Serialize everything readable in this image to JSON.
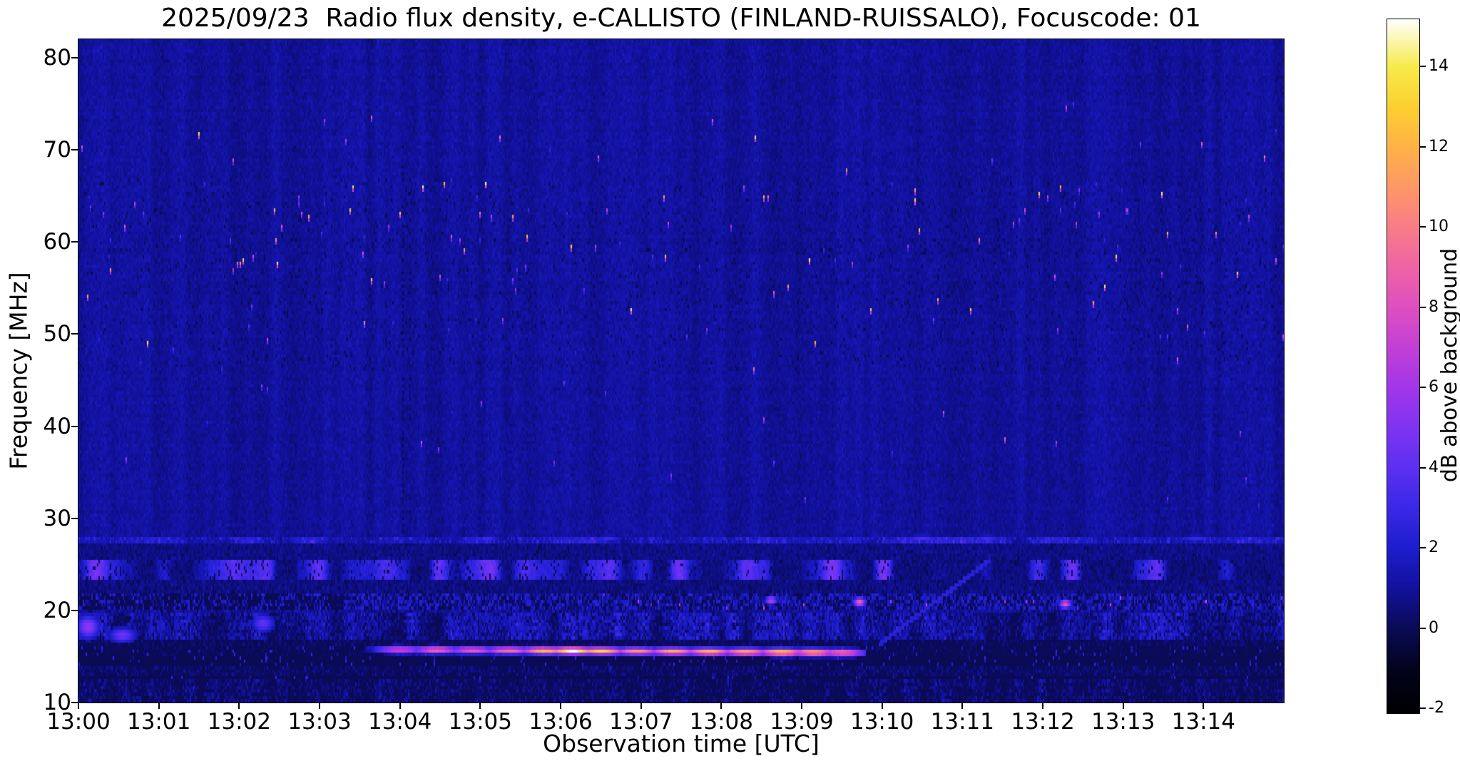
{
  "chart_data": {
    "type": "heatmap",
    "title": "2025/09/23  Radio flux density, e-CALLISTO (FINLAND-RUISSALO), Focuscode: 01",
    "xlabel": "Observation time [UTC]",
    "ylabel": "Frequency [MHz]",
    "x_ticks": [
      "13:00",
      "13:01",
      "13:02",
      "13:03",
      "13:04",
      "13:05",
      "13:06",
      "13:07",
      "13:08",
      "13:09",
      "13:10",
      "13:11",
      "13:12",
      "13:13",
      "13:14"
    ],
    "x_range_minutes": [
      0,
      15
    ],
    "y_ticks": [
      10,
      20,
      30,
      40,
      50,
      60,
      70,
      80
    ],
    "y_range_mhz": [
      10,
      82
    ],
    "grid": false,
    "background_db": 1.0,
    "seed": 20250923,
    "colorbar": {
      "label": "dB above background",
      "ticks": [
        -2,
        0,
        2,
        4,
        6,
        8,
        10,
        12,
        14
      ],
      "range_db": [
        -2.1,
        15.2
      ],
      "colormap": "gnuplot2-like",
      "stops": [
        [
          0.0,
          "#000000"
        ],
        [
          0.0636,
          "#03031c"
        ],
        [
          0.1214,
          "#0a0a55"
        ],
        [
          0.1792,
          "#11119c"
        ],
        [
          0.237,
          "#1d1dce"
        ],
        [
          0.2948,
          "#3928e6"
        ],
        [
          0.3526,
          "#5c2ff2"
        ],
        [
          0.4104,
          "#7e33f2"
        ],
        [
          0.4682,
          "#a136e8"
        ],
        [
          0.526,
          "#c23fd6"
        ],
        [
          0.5838,
          "#dd4fc0"
        ],
        [
          0.6416,
          "#ee63a5"
        ],
        [
          0.6994,
          "#f87c87"
        ],
        [
          0.7572,
          "#fe9766"
        ],
        [
          0.815,
          "#ffb246"
        ],
        [
          0.8728,
          "#fccf30"
        ],
        [
          0.9306,
          "#f7ea49"
        ],
        [
          1.0,
          "#ffffff"
        ]
      ]
    },
    "features": [
      {
        "kind": "dark_specks",
        "f": [
          46,
          67
        ],
        "density": 0.03,
        "depth": 1.25
      },
      {
        "kind": "speckles",
        "f": [
          30,
          47
        ],
        "density": 0.0005,
        "amp": [
          2.5,
          10
        ]
      },
      {
        "kind": "speckles",
        "f": [
          47,
          58.5
        ],
        "density": 0.0028,
        "amp": [
          2.5,
          15
        ]
      },
      {
        "kind": "speckles",
        "f": [
          58.5,
          67
        ],
        "density": 0.0042,
        "amp": [
          2.5,
          15
        ]
      },
      {
        "kind": "speckles",
        "f": [
          67,
          71
        ],
        "density": 0.0012,
        "amp": [
          2.5,
          12
        ]
      },
      {
        "kind": "speckles",
        "f": [
          71,
          76
        ],
        "density": 0.0007,
        "amp": [
          3,
          14
        ]
      },
      {
        "kind": "hline_dashes",
        "f": [
          27.45,
          28.15
        ],
        "base": 1.3,
        "dash_p": 0.3,
        "dash_amp": 1.5,
        "scale": 20,
        "blob_amp": 1.6
      },
      {
        "kind": "noise_band",
        "f": [
          25.4,
          27.45
        ],
        "base": 0.7,
        "noise": 0.55,
        "dark_p": 0.05
      },
      {
        "kind": "blob_band",
        "f": [
          23.3,
          25.4
        ],
        "base": 0.55,
        "amp": 3.4,
        "scale": 12,
        "dark_p": 0.1
      },
      {
        "kind": "noise_band",
        "f": [
          21.85,
          23.3
        ],
        "base": 0.65,
        "noise": 0.6,
        "dark_p": 0.08
      },
      {
        "kind": "ragged_band",
        "f": [
          20.2,
          21.85
        ],
        "t_split": 3.3,
        "black_p_left": 0.65,
        "black_p_right": 0.34,
        "bright_p": 0.004,
        "bright_amp": [
          4,
          8.5
        ],
        "bright_t_min": 4.5
      },
      {
        "kind": "noise_band",
        "f": [
          19.6,
          20.2
        ],
        "base": 1.0,
        "noise": 0.8,
        "dark_p": 0.06
      },
      {
        "kind": "noise_band",
        "f": [
          16.8,
          19.6
        ],
        "base": 0.9,
        "noise": 1.1,
        "scale": 9,
        "blob_amp": 2.2,
        "dark_p": 0.15
      },
      {
        "kind": "noise_band",
        "f": [
          16.05,
          16.8
        ],
        "base": 0.15,
        "noise": 0.8,
        "dark_p": 0.25
      },
      {
        "kind": "noise_band",
        "f": [
          15.05,
          16.05
        ],
        "base": -0.1,
        "noise": 0.8,
        "dark_p": 0.3,
        "blue_p": 0.04
      },
      {
        "kind": "black_band",
        "f": [
          13.95,
          15.05
        ],
        "base": -1.5,
        "noise": 1.1,
        "blue_p": 0.045
      },
      {
        "kind": "noise_band",
        "f": [
          13.2,
          13.95
        ],
        "base": 0.3,
        "noise": 0.9,
        "dark_p": 0.22
      },
      {
        "kind": "black_band",
        "f": [
          12.35,
          12.8
        ],
        "base": -1.1,
        "noise": 0.9,
        "blue_p": 0.03
      },
      {
        "kind": "noise_band",
        "f": [
          12.8,
          13.2
        ],
        "base": 0.25,
        "noise": 0.9,
        "dark_p": 0.2
      },
      {
        "kind": "noise_band",
        "f": [
          10,
          12.35
        ],
        "base": 0.25,
        "noise": 1.0,
        "scale": 5,
        "blob_amp": 1.1,
        "dark_p": 0.28
      },
      {
        "kind": "burst",
        "t": [
          3.55,
          9.8
        ],
        "f0": 15.95,
        "drift": -0.055,
        "halfwidth": 0.4,
        "sigma": 0.22,
        "peaks": [
          [
            4.0,
            8
          ],
          [
            4.45,
            9.5
          ],
          [
            4.9,
            9
          ],
          [
            5.35,
            10
          ],
          [
            5.8,
            12.5
          ],
          [
            6.15,
            15.2
          ],
          [
            6.5,
            13.5
          ],
          [
            6.95,
            11
          ],
          [
            7.4,
            12
          ],
          [
            7.85,
            12.5
          ],
          [
            8.3,
            12
          ],
          [
            8.75,
            13
          ],
          [
            9.15,
            12
          ],
          [
            9.5,
            10
          ]
        ]
      },
      {
        "kind": "bright_spot",
        "t": 0.12,
        "f": 18.2,
        "amp": 5.5,
        "st": 0.1,
        "sf": 0.9
      },
      {
        "kind": "bright_spot",
        "t": 0.55,
        "f": 17.3,
        "amp": 4.5,
        "st": 0.12,
        "sf": 0.6
      },
      {
        "kind": "bright_spot",
        "t": 2.3,
        "f": 18.6,
        "amp": 4.2,
        "st": 0.1,
        "sf": 0.7
      },
      {
        "kind": "bright_spot",
        "t": 8.62,
        "f": 21.1,
        "amp": 7,
        "st": 0.05,
        "sf": 0.3
      },
      {
        "kind": "bright_spot",
        "t": 9.72,
        "f": 20.9,
        "amp": 9,
        "st": 0.05,
        "sf": 0.35
      },
      {
        "kind": "bright_spot",
        "t": 12.28,
        "f": 20.7,
        "amp": 8.5,
        "st": 0.05,
        "sf": 0.35
      },
      {
        "kind": "bright_spot",
        "t": 5.1,
        "f": 27.8,
        "amp": 3.0,
        "st": 0.1,
        "sf": 0.3
      },
      {
        "kind": "bright_spot",
        "t": 6.6,
        "f": 27.8,
        "amp": 3.0,
        "st": 0.12,
        "sf": 0.3
      },
      {
        "kind": "bright_spot",
        "t": 10.5,
        "f": 27.8,
        "amp": 3.5,
        "st": 0.15,
        "sf": 0.3
      },
      {
        "kind": "bright_spot",
        "t": 11.3,
        "f": 27.8,
        "amp": 3.2,
        "st": 0.12,
        "sf": 0.3
      },
      {
        "kind": "bright_spot",
        "t": 13.9,
        "f": 27.8,
        "amp": 3.0,
        "st": 0.15,
        "sf": 0.3
      },
      {
        "kind": "diag",
        "t": [
          9.95,
          11.35
        ],
        "f": [
          16.2,
          25.5
        ],
        "amp": 2.4
      },
      {
        "kind": "vline_dotted",
        "t": 4.04,
        "f": [
          28,
          71
        ],
        "p": 0.8
      },
      {
        "kind": "vline_dotted",
        "t": 4.13,
        "f": [
          30,
          68
        ],
        "p": 0.45
      }
    ]
  }
}
